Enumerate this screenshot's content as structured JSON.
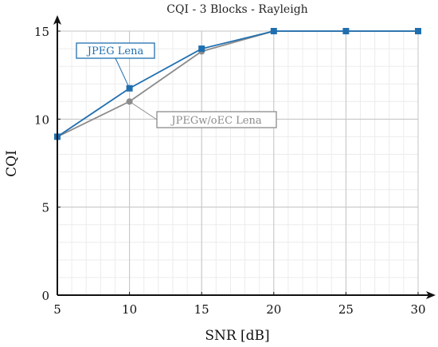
{
  "chart_data": {
    "type": "line",
    "title": "CQI - 3 Blocks - Rayleigh",
    "xlabel": "SNR [dB]",
    "ylabel": "CQI",
    "xlim": [
      5,
      30
    ],
    "ylim": [
      0,
      15
    ],
    "xticks": [
      5,
      10,
      15,
      20,
      25,
      30
    ],
    "yticks": [
      0,
      5,
      10,
      15
    ],
    "grid": true,
    "minor_grid": true,
    "series": [
      {
        "name": "JPEG Lena",
        "color": "#1f6fb0",
        "marker": "square",
        "x": [
          5,
          10,
          15,
          20,
          25,
          30
        ],
        "y": [
          9.0,
          11.75,
          14.0,
          15.0,
          15.0,
          15.0
        ]
      },
      {
        "name": "JPEGw/oEC Lena",
        "color": "#8c8c8c",
        "marker": "circle",
        "x": [
          5,
          10,
          15,
          20,
          25,
          30
        ],
        "y": [
          9.0,
          11.0,
          13.85,
          15.0,
          15.0,
          15.0
        ]
      }
    ]
  }
}
